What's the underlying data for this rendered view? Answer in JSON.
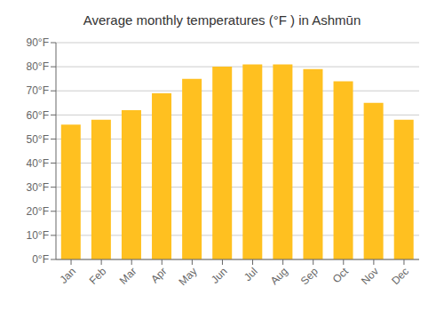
{
  "chart_data": {
    "type": "bar",
    "title": "Average monthly temperatures (°F ) in Ashmūn",
    "categories": [
      "Jan",
      "Feb",
      "Mar",
      "Apr",
      "May",
      "Jun",
      "Jul",
      "Aug",
      "Sep",
      "Oct",
      "Nov",
      "Dec"
    ],
    "values": [
      56,
      58,
      62,
      69,
      75,
      80,
      81,
      81,
      79,
      74,
      65,
      58
    ],
    "color": "#FFC020",
    "ylim": [
      0,
      90
    ],
    "yticks": [
      {
        "value": 0,
        "label": "0°F"
      },
      {
        "value": 10,
        "label": "10°F"
      },
      {
        "value": 20,
        "label": "20°F"
      },
      {
        "value": 30,
        "label": "30°F"
      },
      {
        "value": 40,
        "label": "40°F"
      },
      {
        "value": 50,
        "label": "50°F"
      },
      {
        "value": 60,
        "label": "60°F"
      },
      {
        "value": 70,
        "label": "70°F"
      },
      {
        "value": 80,
        "label": "80°F"
      },
      {
        "value": 90,
        "label": "90°F"
      }
    ],
    "grid": true
  }
}
